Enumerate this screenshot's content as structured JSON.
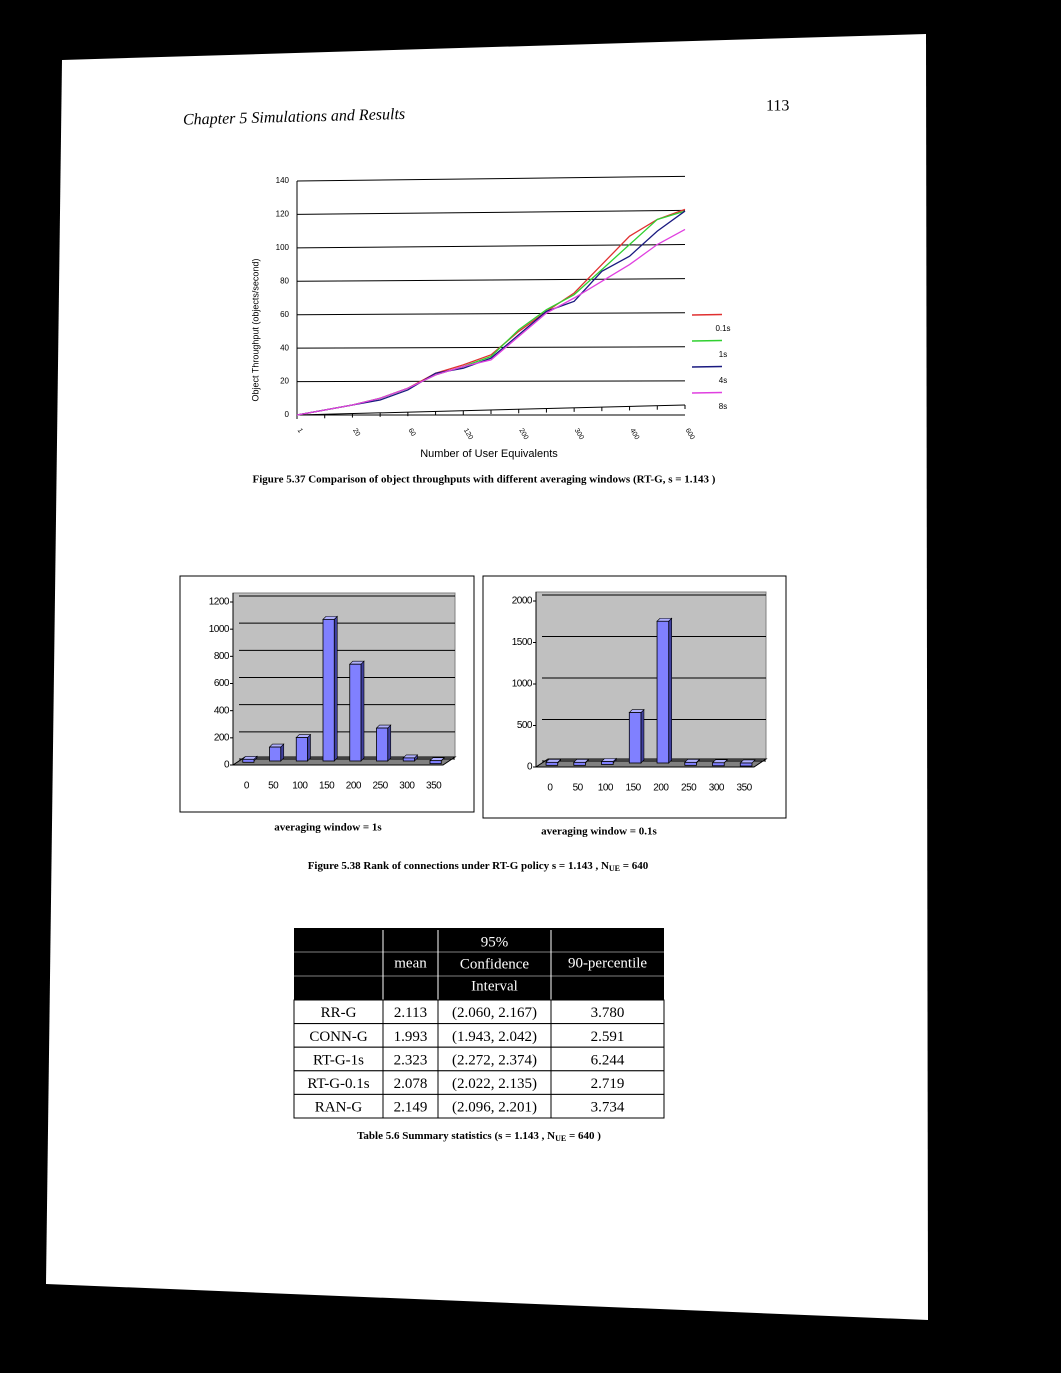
{
  "header": {
    "chapter": "Chapter 5 Simulations and Results",
    "page_number": "113"
  },
  "chart_data": [
    {
      "type": "line",
      "y_label": "Object Throughput (objects/second)",
      "x_label": "Number of User Equivalents",
      "categories": [
        "1",
        null,
        "20",
        null,
        "60",
        null,
        "120",
        null,
        "200",
        null,
        "300",
        null,
        "400",
        null,
        "600"
      ],
      "ylim": [
        0,
        140
      ],
      "yticks": [
        0,
        20,
        40,
        60,
        80,
        100,
        120,
        140
      ],
      "grid": true,
      "legend": "right",
      "series": [
        {
          "name": "0.1s",
          "color": "#e03030",
          "values": [
            0,
            3,
            6,
            10,
            16,
            25,
            30,
            36,
            50,
            62,
            73,
            90,
            107,
            117,
            123
          ]
        },
        {
          "name": "1s",
          "color": "#30d030",
          "values": [
            0,
            3,
            6,
            10,
            16,
            24,
            29,
            35,
            51,
            63,
            72,
            87,
            102,
            117,
            122
          ]
        },
        {
          "name": "4s",
          "color": "#1a1a80",
          "values": [
            0,
            3,
            6,
            9,
            15,
            25,
            28,
            34,
            48,
            62,
            68,
            86,
            95,
            110,
            122
          ]
        },
        {
          "name": "8s",
          "color": "#e040e0",
          "values": [
            0,
            3,
            6,
            10,
            16,
            24,
            29,
            33,
            47,
            61,
            70,
            80,
            90,
            102,
            111
          ]
        }
      ]
    },
    {
      "type": "bar3d",
      "subtitle": "averaging window = 1s",
      "color": "#8080ff",
      "categories": [
        "0",
        "50",
        "100",
        "150",
        "200",
        "250",
        "300",
        "350"
      ],
      "values": [
        20,
        110,
        180,
        1050,
        720,
        250,
        30,
        10
      ],
      "ylim": [
        0,
        1200
      ],
      "yticks": [
        0,
        200,
        400,
        600,
        800,
        1000,
        1200
      ],
      "grid": true
    },
    {
      "type": "bar3d",
      "subtitle": "averaging window = 0.1s",
      "color": "#8080ff",
      "categories": [
        "0",
        "50",
        "100",
        "150",
        "200",
        "250",
        "300",
        "350"
      ],
      "values": [
        20,
        20,
        30,
        620,
        1720,
        20,
        15,
        10
      ],
      "ylim": [
        0,
        2000
      ],
      "yticks": [
        0,
        500,
        1000,
        1500,
        2000
      ],
      "grid": true
    }
  ],
  "captions": {
    "fig537": "Figure 5.37 Comparison of object throughputs with different averaging windows (RT-G, s = 1.143 )",
    "fig538": {
      "pre": "Figure 5.38 Rank of connections under RT-G policy s = 1.143 , N",
      "sub": "UE",
      "post": " = 640"
    },
    "table56": {
      "pre": "Table 5.6 Summary statistics (s = 1.143 , N",
      "sub": "UE",
      "post": " = 640 )"
    }
  },
  "table": {
    "columns": [
      "mean",
      [
        "95%",
        "Confidence",
        "Interval"
      ],
      "90-percentile"
    ],
    "rows": [
      [
        "RR-G",
        "2.113",
        "(2.060, 2.167)",
        "3.780"
      ],
      [
        "CONN-G",
        "1.993",
        "(1.943, 2.042)",
        "2.591"
      ],
      [
        "RT-G-1s",
        "2.323",
        "(2.272, 2.374)",
        "6.244"
      ],
      [
        "RT-G-0.1s",
        "2.078",
        "(2.022, 2.135)",
        "2.719"
      ],
      [
        "RAN-G",
        "2.149",
        "(2.096, 2.201)",
        "3.734"
      ]
    ]
  }
}
